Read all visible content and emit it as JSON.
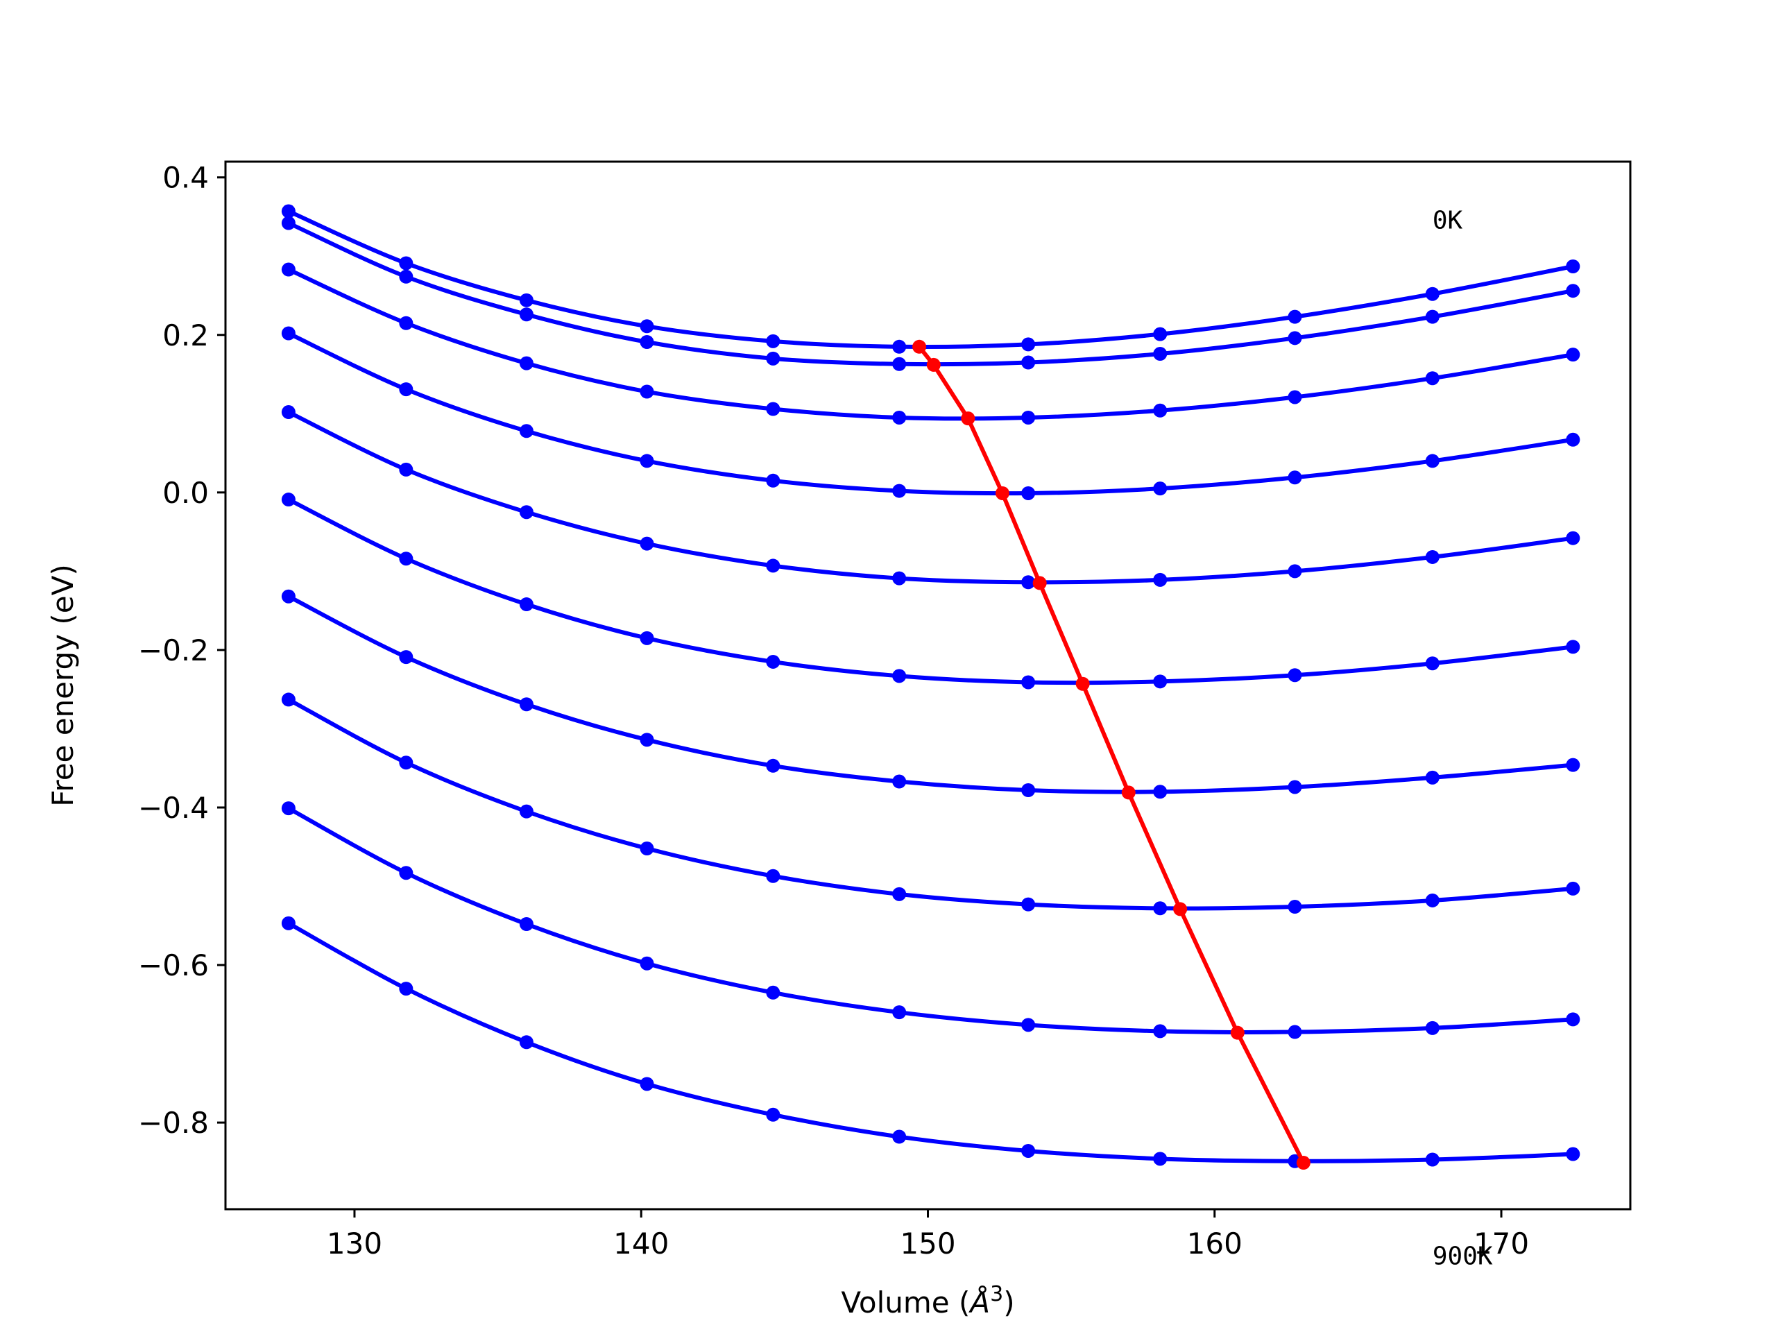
{
  "chart_data": {
    "type": "line",
    "xlabel_text": "Volume (",
    "xlabel_unit": "Å",
    "xlabel_sup": "3",
    "xlabel_end": ")",
    "ylabel": "Free energy (eV)",
    "xlim": [
      125.5,
      174.5
    ],
    "ylim": [
      -0.91,
      0.42
    ],
    "xticks": [
      130,
      140,
      150,
      160,
      170
    ],
    "yticks": [
      0.4,
      0.2,
      0.0,
      -0.2,
      -0.4,
      -0.6,
      -0.8
    ],
    "ytick_labels": [
      "0.4",
      "0.2",
      "0.0",
      "−0.2",
      "−0.4",
      "−0.6",
      "−0.8"
    ],
    "xtick_labels": [
      "130",
      "140",
      "150",
      "160",
      "170"
    ],
    "annotations": [
      {
        "text": "0K",
        "x": 167.6,
        "y": 0.335
      },
      {
        "text": "900K",
        "x": 167.6,
        "y": -0.98
      }
    ],
    "x": [
      127.7,
      131.8,
      136.0,
      140.2,
      144.6,
      149.0,
      153.5,
      158.1,
      162.8,
      167.6,
      172.5
    ],
    "curve_color": "#0000ff",
    "min_color": "#ff0000",
    "series": [
      {
        "values": [
          0.357,
          0.291,
          0.244,
          0.211,
          0.192,
          0.185,
          0.188,
          0.201,
          0.223,
          0.252,
          0.287
        ]
      },
      {
        "values": [
          0.342,
          0.274,
          0.226,
          0.191,
          0.17,
          0.163,
          0.165,
          0.176,
          0.196,
          0.223,
          0.256
        ]
      },
      {
        "values": [
          0.283,
          0.215,
          0.164,
          0.128,
          0.106,
          0.095,
          0.095,
          0.104,
          0.121,
          0.145,
          0.175
        ]
      },
      {
        "values": [
          0.202,
          0.131,
          0.078,
          0.04,
          0.015,
          0.002,
          -0.001,
          0.005,
          0.019,
          0.04,
          0.067
        ]
      },
      {
        "values": [
          0.102,
          0.029,
          -0.025,
          -0.065,
          -0.093,
          -0.109,
          -0.114,
          -0.111,
          -0.1,
          -0.082,
          -0.058
        ]
      },
      {
        "values": [
          -0.009,
          -0.084,
          -0.142,
          -0.185,
          -0.215,
          -0.233,
          -0.241,
          -0.24,
          -0.232,
          -0.217,
          -0.196
        ]
      },
      {
        "values": [
          -0.132,
          -0.209,
          -0.269,
          -0.314,
          -0.347,
          -0.367,
          -0.378,
          -0.38,
          -0.374,
          -0.362,
          -0.346
        ]
      },
      {
        "values": [
          -0.263,
          -0.343,
          -0.405,
          -0.452,
          -0.487,
          -0.51,
          -0.523,
          -0.528,
          -0.526,
          -0.518,
          -0.503
        ]
      },
      {
        "values": [
          -0.401,
          -0.483,
          -0.548,
          -0.598,
          -0.635,
          -0.66,
          -0.676,
          -0.684,
          -0.685,
          -0.68,
          -0.669
        ]
      },
      {
        "values": [
          -0.547,
          -0.63,
          -0.698,
          -0.751,
          -0.79,
          -0.818,
          -0.836,
          -0.846,
          -0.849,
          -0.847,
          -0.84
        ]
      }
    ],
    "minimum_line": {
      "x": [
        149.7,
        150.2,
        151.4,
        152.6,
        153.9,
        155.4,
        157.0,
        158.8,
        160.8,
        163.1
      ],
      "y": [
        0.185,
        0.162,
        0.094,
        -0.001,
        -0.115,
        -0.243,
        -0.381,
        -0.529,
        -0.686,
        -0.851
      ]
    }
  }
}
